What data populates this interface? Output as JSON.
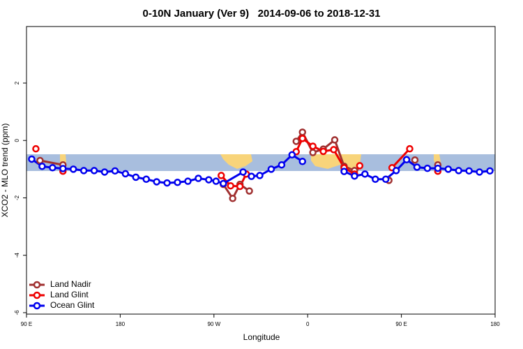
{
  "chart_data": {
    "type": "line",
    "title": "0-10N January (Ver 9)   2014-09-06 to 2018-12-31",
    "x_label": "Longitude",
    "y_label": "XCO2 - MLO trend (ppm)",
    "xlim": [
      90,
      540
    ],
    "ylim": [
      -6.05,
      3.97
    ],
    "xticks": [
      {
        "value": 90,
        "label": "90 E"
      },
      180,
      {
        "value": 270,
        "label": "90 W"
      },
      {
        "value": 360,
        "label": "0"
      },
      {
        "value": 450,
        "label": "90 E"
      },
      {
        "value": 540,
        "label": "180"
      }
    ],
    "yticks": [
      -6,
      -4,
      -2,
      0,
      2
    ],
    "legend": "bottom-left",
    "series": [
      {
        "name": "Land Nadir",
        "color": "#a03030",
        "x": [
          103,
          125,
          null,
          279,
          288,
          295,
          304,
          null,
          349,
          355,
          365,
          375,
          386,
          395,
          405,
          null,
          438,
          null,
          463,
          null,
          485
        ],
        "values": [
          -0.7,
          -0.85,
          null,
          -1.53,
          -2.02,
          -1.53,
          -1.76,
          null,
          -0.03,
          0.29,
          -0.42,
          -0.3,
          0.02,
          -0.9,
          -1.05,
          null,
          -1.39,
          null,
          -0.68,
          null,
          -0.85
        ]
      },
      {
        "name": "Land Glint",
        "color": "#ee0000",
        "x": [
          99,
          null,
          125,
          null,
          277,
          286,
          295,
          301,
          null,
          349,
          355,
          365,
          375,
          385,
          395,
          405,
          410,
          null,
          441,
          458,
          null,
          485
        ],
        "values": [
          -0.29,
          null,
          -1.07,
          null,
          -1.22,
          -1.58,
          -1.6,
          -1.17,
          null,
          -0.39,
          0.07,
          -0.2,
          -0.38,
          -0.32,
          -0.95,
          -1.17,
          -0.88,
          null,
          -0.95,
          -0.29,
          null,
          -1.07
        ]
      },
      {
        "name": "Ocean Glint",
        "color": "#0000ee",
        "x": [
          95,
          105,
          115,
          125,
          135,
          145,
          155,
          165,
          175,
          185,
          195,
          205,
          215,
          225,
          235,
          245,
          255,
          265,
          272,
          279,
          298,
          306,
          314,
          325,
          335,
          345,
          355,
          null,
          395,
          405,
          415,
          425,
          435,
          445,
          455,
          465,
          475,
          485,
          495,
          505,
          515,
          525,
          535
        ],
        "values": [
          -0.65,
          -0.9,
          -0.95,
          -0.98,
          -1.0,
          -1.05,
          -1.05,
          -1.1,
          -1.06,
          -1.16,
          -1.28,
          -1.35,
          -1.44,
          -1.48,
          -1.46,
          -1.42,
          -1.32,
          -1.37,
          -1.42,
          -1.5,
          -1.1,
          -1.25,
          -1.22,
          -1.0,
          -0.85,
          -0.5,
          -0.73,
          null,
          -1.08,
          -1.24,
          -1.17,
          -1.35,
          -1.35,
          -1.05,
          -0.67,
          -0.93,
          -0.97,
          -0.97,
          -1.0,
          -1.05,
          -1.06,
          -1.1,
          -1.06
        ]
      }
    ]
  }
}
